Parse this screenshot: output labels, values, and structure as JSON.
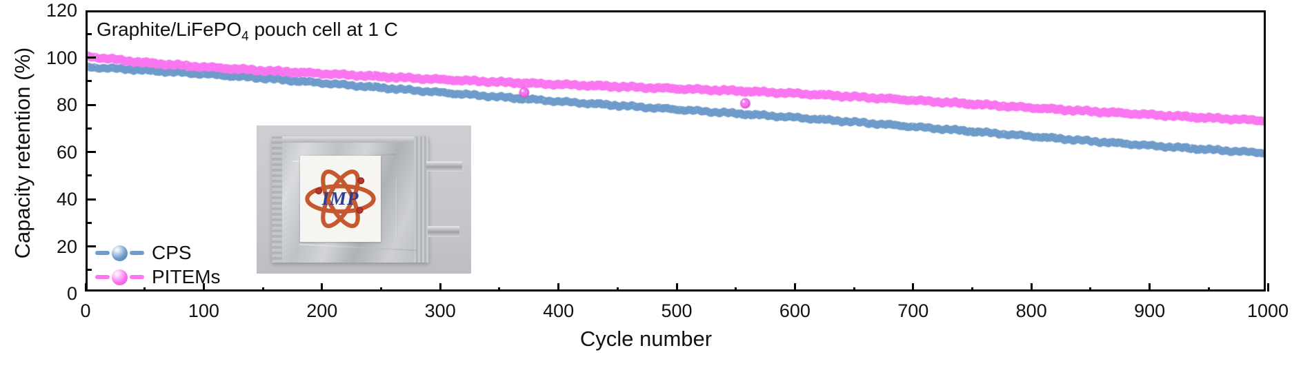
{
  "figure": {
    "title_prefix": "Graphite/LiFePO",
    "title_sub": "4",
    "title_suffix": " pouch cell at 1 C"
  },
  "chart_data": {
    "type": "scatter",
    "title": "Graphite/LiFePO4 pouch cell at 1 C",
    "xlabel": "Cycle number",
    "ylabel": "Capacity retention (%)",
    "xlim": [
      0,
      1000
    ],
    "ylim": [
      0,
      120
    ],
    "x_ticks": [
      0,
      100,
      200,
      300,
      400,
      500,
      600,
      700,
      800,
      900,
      1000
    ],
    "x_minor_step": 50,
    "y_ticks": [
      0,
      20,
      40,
      60,
      80,
      100,
      120
    ],
    "y_minor_step": 10,
    "grid": false,
    "legend_position": "lower-left",
    "colors": {
      "blue": "#6f9cca",
      "blue_dark": "#4a7aa8",
      "pink": "#fa77f1",
      "pink_dark": "#d44cc9",
      "axis": "#000000"
    },
    "series": [
      {
        "name": "CPS",
        "color": "#6f9cca",
        "x": [
          0,
          50,
          100,
          150,
          200,
          250,
          300,
          350,
          400,
          450,
          500,
          550,
          600,
          650,
          700,
          750,
          800,
          850,
          900,
          950,
          1000
        ],
        "y": [
          96.0,
          94.6,
          93.0,
          91.2,
          89.2,
          87.2,
          85.2,
          83.3,
          81.4,
          79.7,
          78.0,
          76.3,
          74.6,
          72.7,
          70.7,
          68.7,
          66.6,
          64.6,
          62.7,
          61.0,
          59.5
        ]
      },
      {
        "name": "PITEMs",
        "color": "#fa77f1",
        "x": [
          0,
          50,
          100,
          150,
          200,
          250,
          300,
          350,
          400,
          450,
          500,
          550,
          600,
          650,
          700,
          750,
          800,
          850,
          900,
          950,
          1000
        ],
        "y": [
          100.6,
          97.8,
          96.0,
          94.5,
          93.2,
          91.9,
          90.7,
          89.6,
          88.6,
          87.7,
          86.8,
          85.9,
          84.8,
          83.4,
          81.9,
          80.3,
          78.7,
          77.2,
          75.8,
          74.4,
          73.2
        ],
        "outliers": [
          [
            371,
            85.2
          ],
          [
            558,
            80.6
          ]
        ]
      }
    ],
    "inset": {
      "description": "photo of Graphite/LiFePO4 pouch cell with IMP logo label",
      "logo_text": "IMP"
    }
  }
}
